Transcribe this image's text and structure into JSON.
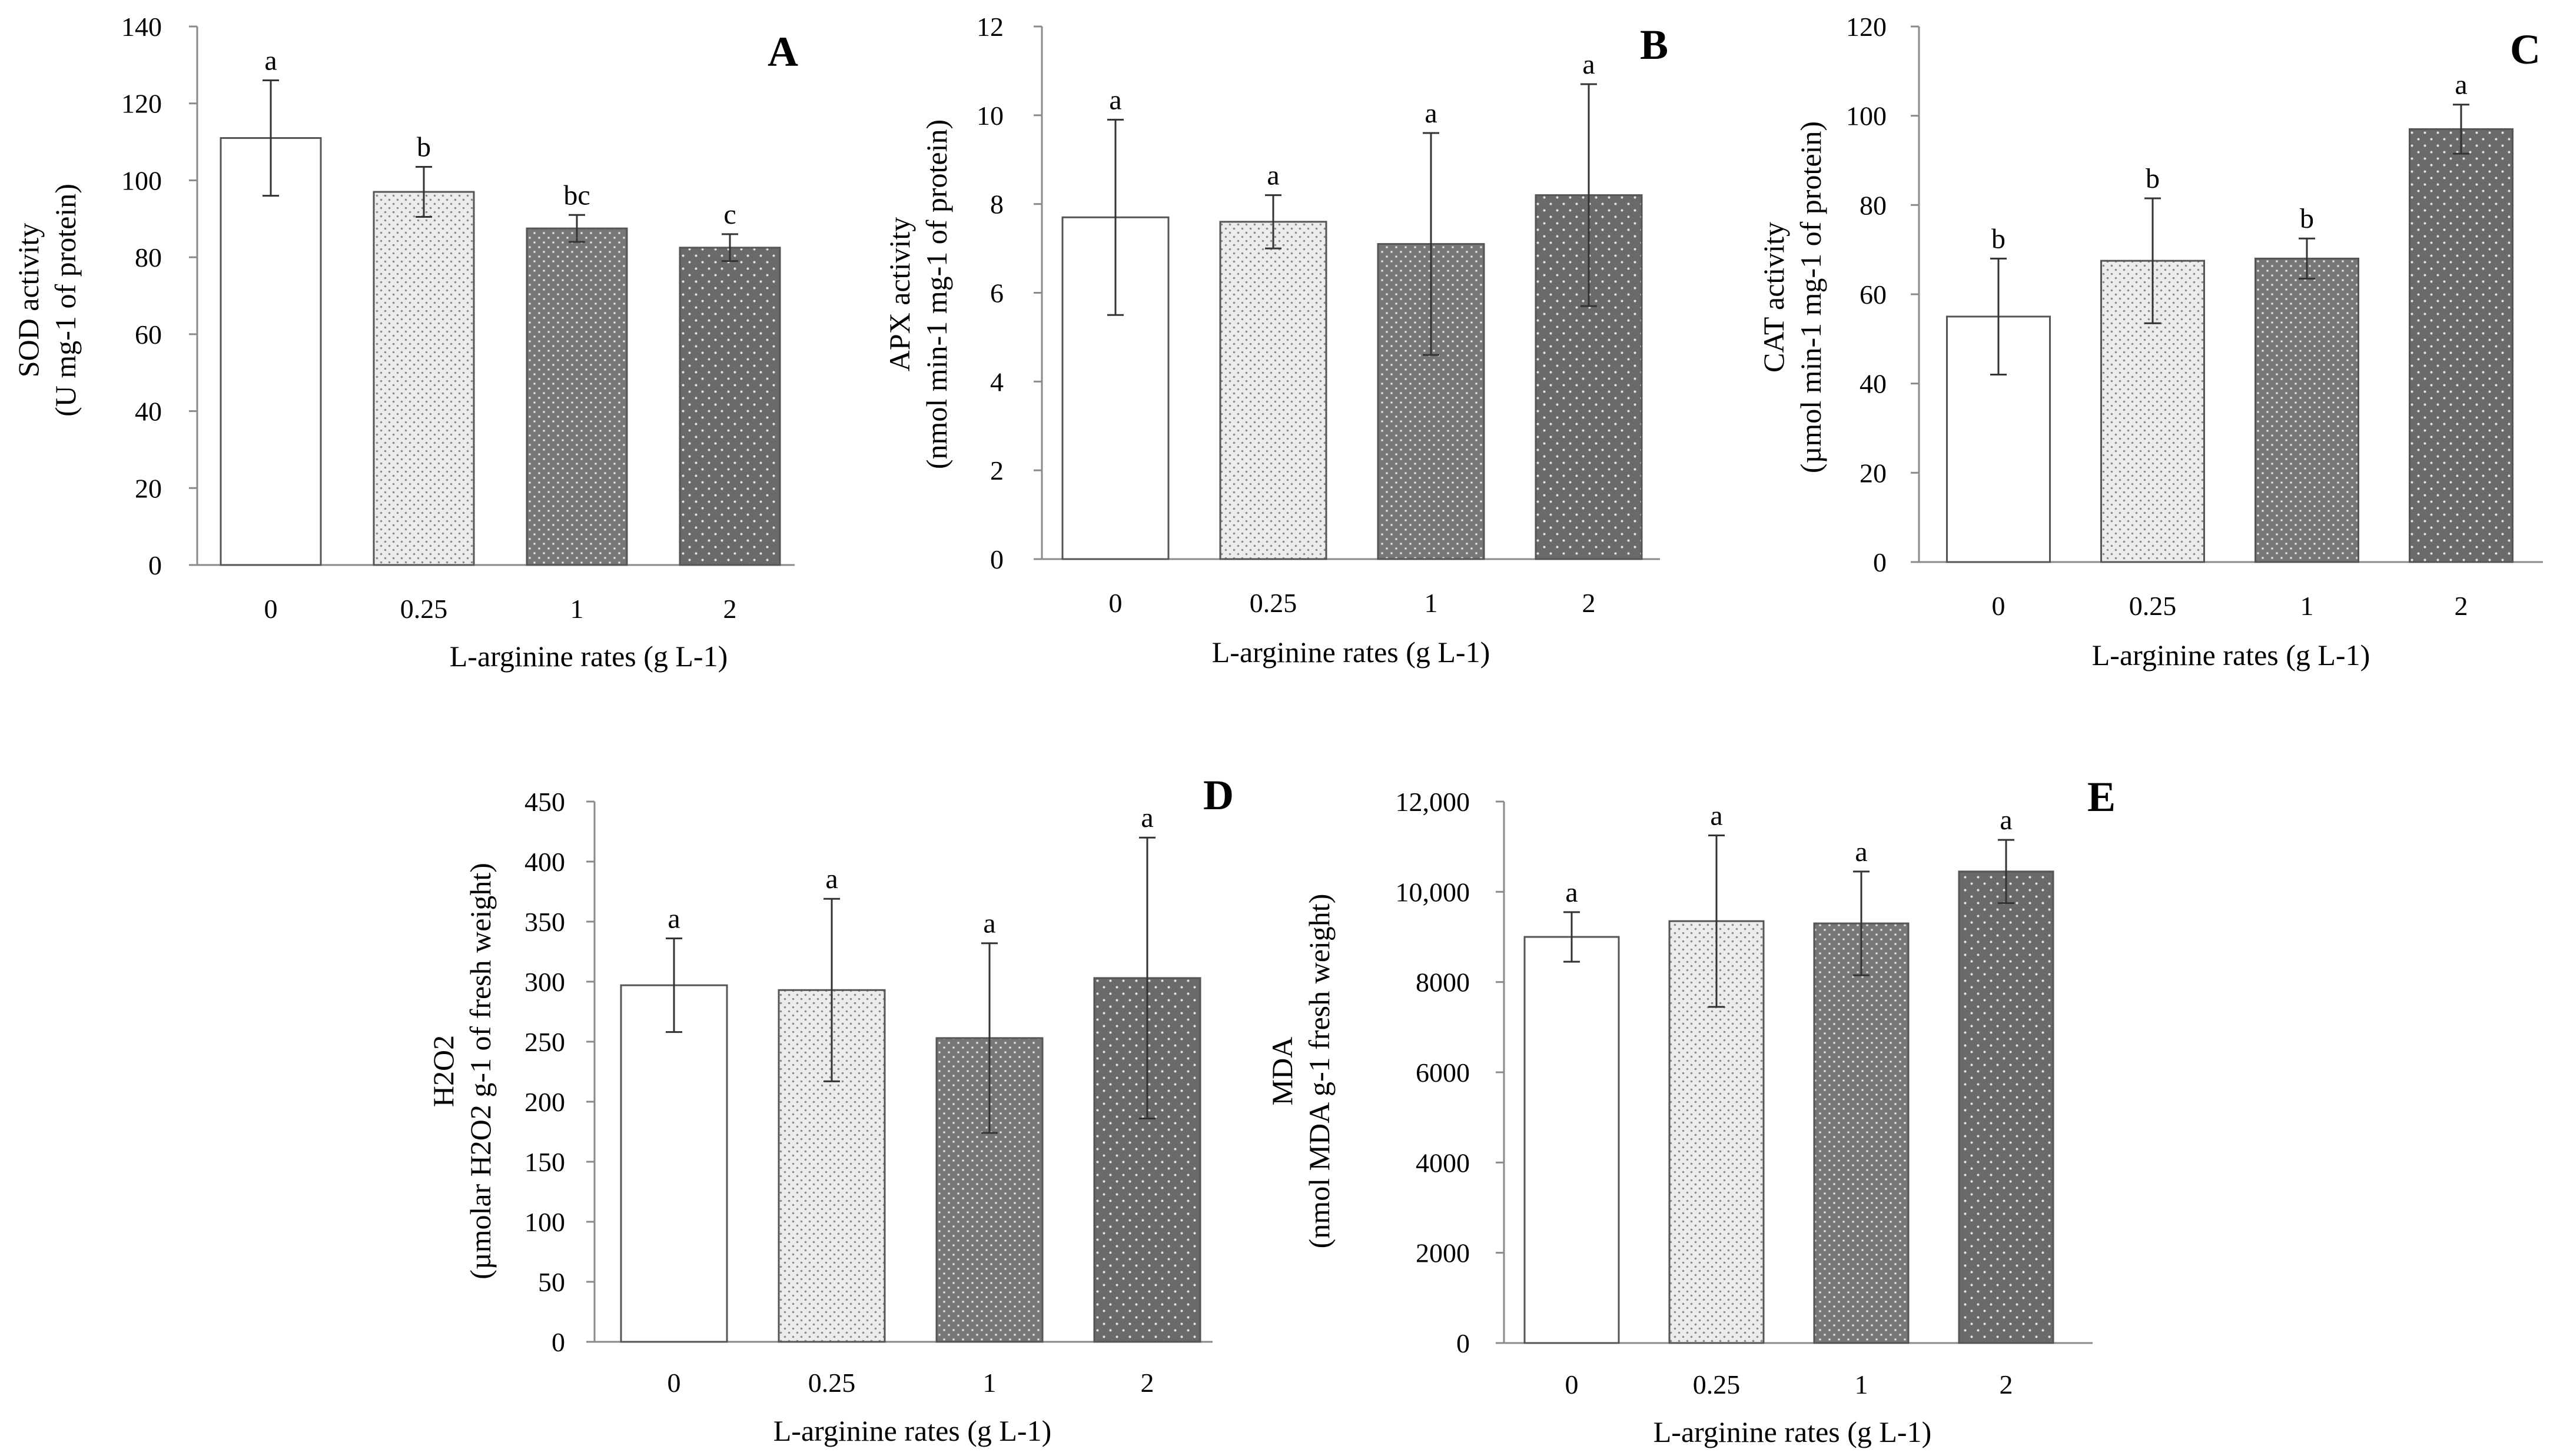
{
  "chart_data": [
    {
      "id": "A",
      "type": "bar",
      "panel_letter": "A",
      "categories": [
        "0",
        "0.25",
        "1",
        "2"
      ],
      "values": [
        111,
        97,
        87.5,
        82.5
      ],
      "errors": [
        15,
        6.5,
        3.5,
        3.5
      ],
      "significance": [
        "a",
        "b",
        "bc",
        "c"
      ],
      "ylim": [
        0,
        140
      ],
      "yticks": [
        "0",
        "20",
        "40",
        "60",
        "80",
        "100",
        "120",
        "140"
      ],
      "ylabel_line1": "SOD activity",
      "ylabel_line2": "(U mg-1 of protein)",
      "xlabel": "L-arginine  rates (g L-1)"
    },
    {
      "id": "B",
      "type": "bar",
      "panel_letter": "B",
      "categories": [
        "0",
        "0.25",
        "1",
        "2"
      ],
      "values": [
        7.7,
        7.6,
        7.1,
        8.2
      ],
      "errors": [
        2.2,
        0.6,
        2.5,
        2.5
      ],
      "significance": [
        "a",
        "a",
        "a",
        "a"
      ],
      "ylim": [
        0,
        12
      ],
      "yticks": [
        "0",
        "2",
        "4",
        "6",
        "8",
        "10",
        "12"
      ],
      "ylabel_line1": "APX activity",
      "ylabel_line2": "(nmol min-1 mg-1 of protein)",
      "xlabel": "L-arginine  rates (g L-1)"
    },
    {
      "id": "C",
      "type": "bar",
      "panel_letter": "C",
      "categories": [
        "0",
        "0.25",
        "1",
        "2"
      ],
      "values": [
        55,
        67.5,
        68,
        97
      ],
      "errors": [
        13,
        14,
        4.5,
        5.5
      ],
      "significance": [
        "b",
        "b",
        "b",
        "a"
      ],
      "ylim": [
        0,
        120
      ],
      "yticks": [
        "0",
        "20",
        "40",
        "60",
        "80",
        "100",
        "120"
      ],
      "ylabel_line1": "CAT activity",
      "ylabel_line2": "(µmol min-1 mg-1 of protein)",
      "xlabel": "L-arginine  rates (g L-1)"
    },
    {
      "id": "D",
      "type": "bar",
      "panel_letter": "D",
      "categories": [
        "0",
        "0.25",
        "1",
        "2"
      ],
      "values": [
        297,
        293,
        253,
        303
      ],
      "errors": [
        39,
        76,
        79,
        117
      ],
      "significance": [
        "a",
        "a",
        "a",
        "a"
      ],
      "ylim": [
        0,
        450
      ],
      "yticks": [
        "0",
        "50",
        "100",
        "150",
        "200",
        "250",
        "300",
        "350",
        "400",
        "450"
      ],
      "ylabel_line1": "H2O2",
      "ylabel_line2": "(µmolar H2O2 g-1 of fresh weight)",
      "xlabel": "L-arginine  rates (g L-1)"
    },
    {
      "id": "E",
      "type": "bar",
      "panel_letter": "E",
      "categories": [
        "0",
        "0.25",
        "1",
        "2"
      ],
      "values": [
        9000,
        9350,
        9300,
        10450
      ],
      "errors": [
        550,
        1900,
        1150,
        700
      ],
      "significance": [
        "a",
        "a",
        "a",
        "a"
      ],
      "ylim": [
        0,
        12000
      ],
      "yticks": [
        "0",
        "2000",
        "4000",
        "6000",
        "8000",
        "10,000",
        "12,000"
      ],
      "ylabel_line1": "MDA",
      "ylabel_line2": "(nmol MDA g-1 fresh weight)",
      "xlabel": "L-arginine  rates (g L-1)"
    }
  ],
  "bar_fills": [
    "#ffffff",
    "#e8e8e8",
    "#7a7a7a",
    "#6e6e6e"
  ],
  "colors": {
    "axis": "#888888",
    "bar_outline": "#555555",
    "error_bar": "#333333"
  }
}
